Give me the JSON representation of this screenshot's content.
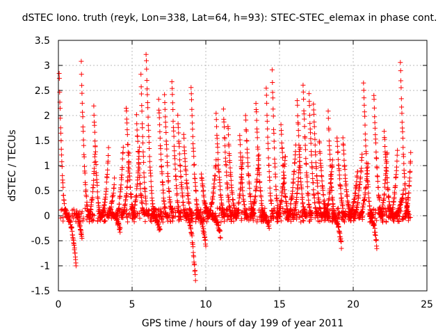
{
  "chart_data": {
    "type": "scatter",
    "title": "dSTEC Iono. truth (reyk, Lon=338, Lat=64, h=93): STEC-STEC_elemax in phase cont.",
    "xlabel": "GPS time / hours of day 199 of year 2011",
    "ylabel": "dSTEC  / TECUs",
    "xlim": [
      0,
      25
    ],
    "ylim": [
      -1.5,
      3.5
    ],
    "x_ticks": [
      0,
      5,
      10,
      15,
      20,
      25
    ],
    "y_ticks": [
      -1.5,
      -1,
      -0.5,
      0,
      0.5,
      1,
      1.5,
      2,
      2.5,
      3,
      3.5
    ],
    "x_tick_labels": [
      "0",
      "5",
      "10",
      "15",
      "20",
      "25"
    ],
    "y_tick_labels": [
      "-1.5",
      "-1",
      "-0.5",
      "0",
      "0.5",
      "1",
      "1.5",
      "2",
      "2.5",
      "3",
      "3.5"
    ],
    "grid": true,
    "marker": "plus",
    "color": "#ff0000",
    "series": [
      {
        "name": "",
        "tracks": [
          {
            "t0": 0.05,
            "t1": 0.55,
            "peak": 2.9,
            "dir": "down"
          },
          {
            "t0": 0.55,
            "t1": 1.2,
            "peak": -1.0,
            "dir": "up"
          },
          {
            "t0": 1.2,
            "t1": 1.6,
            "peak": -0.5,
            "dir": "up"
          },
          {
            "t0": 1.55,
            "t1": 2.1,
            "peak": 3.05,
            "dir": "down"
          },
          {
            "t0": 2.05,
            "t1": 2.5,
            "peak": 1.35,
            "dir": "up"
          },
          {
            "t0": 2.4,
            "t1": 2.9,
            "peak": 2.2,
            "dir": "down"
          },
          {
            "t0": 2.9,
            "t1": 3.4,
            "peak": 1.3,
            "dir": "up"
          },
          {
            "t0": 3.3,
            "t1": 3.8,
            "peak": 0.7,
            "dir": "up"
          },
          {
            "t0": 3.6,
            "t1": 4.2,
            "peak": -0.3,
            "dir": "up"
          },
          {
            "t0": 3.9,
            "t1": 4.4,
            "peak": 1.4,
            "dir": "up"
          },
          {
            "t0": 4.3,
            "t1": 4.8,
            "peak": 1.2,
            "dir": "up"
          },
          {
            "t0": 4.6,
            "t1": 5.2,
            "peak": 2.2,
            "dir": "down"
          },
          {
            "t0": 5.0,
            "t1": 5.5,
            "peak": 1.4,
            "dir": "up"
          },
          {
            "t0": 5.3,
            "t1": 5.9,
            "peak": 2.0,
            "dir": "down"
          },
          {
            "t0": 5.6,
            "t1": 6.1,
            "peak": 2.8,
            "dir": "down"
          },
          {
            "t0": 5.95,
            "t1": 6.6,
            "peak": 3.25,
            "dir": "down"
          },
          {
            "t0": 6.3,
            "t1": 6.9,
            "peak": -0.3,
            "dir": "up"
          },
          {
            "t0": 6.8,
            "t1": 7.4,
            "peak": 2.3,
            "dir": "down"
          },
          {
            "t0": 7.2,
            "t1": 7.8,
            "peak": 2.4,
            "dir": "down"
          },
          {
            "t0": 7.7,
            "t1": 8.3,
            "peak": 2.7,
            "dir": "down"
          },
          {
            "t0": 8.1,
            "t1": 8.7,
            "peak": 2.0,
            "dir": "down"
          },
          {
            "t0": 8.5,
            "t1": 9.1,
            "peak": 1.6,
            "dir": "down"
          },
          {
            "t0": 8.7,
            "t1": 9.3,
            "peak": -1.3,
            "dir": "up"
          },
          {
            "t0": 9.0,
            "t1": 9.6,
            "peak": 2.6,
            "dir": "down"
          },
          {
            "t0": 9.4,
            "t1": 10.0,
            "peak": -0.55,
            "dir": "up"
          },
          {
            "t0": 9.7,
            "t1": 10.3,
            "peak": 0.8,
            "dir": "down"
          },
          {
            "t0": 10.1,
            "t1": 10.7,
            "peak": 1.1,
            "dir": "up"
          },
          {
            "t0": 10.4,
            "t1": 11.0,
            "peak": -0.4,
            "dir": "up"
          },
          {
            "t0": 10.7,
            "t1": 11.3,
            "peak": 2.0,
            "dir": "down"
          },
          {
            "t0": 11.2,
            "t1": 11.8,
            "peak": 2.1,
            "dir": "down"
          },
          {
            "t0": 11.5,
            "t1": 12.1,
            "peak": 1.8,
            "dir": "down"
          },
          {
            "t0": 12.0,
            "t1": 12.5,
            "peak": 1.2,
            "dir": "up"
          },
          {
            "t0": 12.3,
            "t1": 12.8,
            "peak": 1.6,
            "dir": "down"
          },
          {
            "t0": 12.7,
            "t1": 13.3,
            "peak": 2.0,
            "dir": "down"
          },
          {
            "t0": 13.0,
            "t1": 13.6,
            "peak": 1.2,
            "dir": "up"
          },
          {
            "t0": 13.4,
            "t1": 14.0,
            "peak": 2.3,
            "dir": "down"
          },
          {
            "t0": 13.8,
            "t1": 14.3,
            "peak": -0.2,
            "dir": "up"
          },
          {
            "t0": 14.1,
            "t1": 14.6,
            "peak": 2.6,
            "dir": "down"
          },
          {
            "t0": 14.5,
            "t1": 15.0,
            "peak": 2.9,
            "dir": "down"
          },
          {
            "t0": 14.8,
            "t1": 15.4,
            "peak": 1.2,
            "dir": "up"
          },
          {
            "t0": 15.1,
            "t1": 15.7,
            "peak": 1.8,
            "dir": "down"
          },
          {
            "t0": 15.5,
            "t1": 16.1,
            "peak": 1.4,
            "dir": "up"
          },
          {
            "t0": 15.9,
            "t1": 16.4,
            "peak": 1.4,
            "dir": "up"
          },
          {
            "t0": 16.2,
            "t1": 16.8,
            "peak": 2.3,
            "dir": "down"
          },
          {
            "t0": 16.6,
            "t1": 17.2,
            "peak": 2.6,
            "dir": "down"
          },
          {
            "t0": 17.0,
            "t1": 17.6,
            "peak": 2.45,
            "dir": "down"
          },
          {
            "t0": 17.3,
            "t1": 17.9,
            "peak": 2.25,
            "dir": "down"
          },
          {
            "t0": 17.7,
            "t1": 18.3,
            "peak": 1.5,
            "dir": "down"
          },
          {
            "t0": 18.0,
            "t1": 18.6,
            "peak": 1.1,
            "dir": "up"
          },
          {
            "t0": 18.3,
            "t1": 18.8,
            "peak": 2.1,
            "dir": "down"
          },
          {
            "t0": 18.6,
            "t1": 19.2,
            "peak": -0.6,
            "dir": "up"
          },
          {
            "t0": 18.9,
            "t1": 19.5,
            "peak": 1.6,
            "dir": "down"
          },
          {
            "t0": 19.3,
            "t1": 19.9,
            "peak": 1.55,
            "dir": "down"
          },
          {
            "t0": 19.7,
            "t1": 20.3,
            "peak": 0.9,
            "dir": "up"
          },
          {
            "t0": 20.0,
            "t1": 20.6,
            "peak": 1.2,
            "dir": "up"
          },
          {
            "t0": 20.4,
            "t1": 21.0,
            "peak": 1.0,
            "dir": "up"
          },
          {
            "t0": 20.7,
            "t1": 21.3,
            "peak": 2.7,
            "dir": "down"
          },
          {
            "t0": 21.1,
            "t1": 21.6,
            "peak": -0.6,
            "dir": "up"
          },
          {
            "t0": 21.4,
            "t1": 22.0,
            "peak": 2.45,
            "dir": "down"
          },
          {
            "t0": 21.8,
            "t1": 22.3,
            "peak": 1.3,
            "dir": "up"
          },
          {
            "t0": 22.1,
            "t1": 22.7,
            "peak": 1.7,
            "dir": "down"
          },
          {
            "t0": 22.5,
            "t1": 23.0,
            "peak": 1.3,
            "dir": "up"
          },
          {
            "t0": 22.8,
            "t1": 23.4,
            "peak": 0.5,
            "dir": "up"
          },
          {
            "t0": 23.2,
            "t1": 23.8,
            "peak": 3.05,
            "dir": "down"
          },
          {
            "t0": 23.5,
            "t1": 23.9,
            "peak": 1.2,
            "dir": "up"
          }
        ]
      }
    ]
  }
}
